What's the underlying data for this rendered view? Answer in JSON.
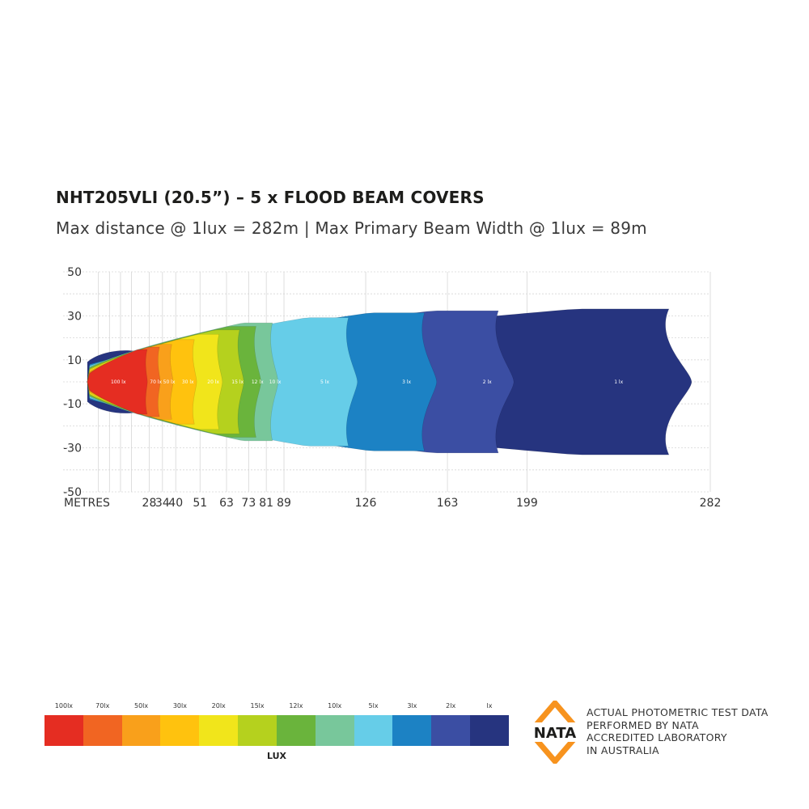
{
  "title": "NHT205VLI (20.5”) – 5 x FLOOD BEAM COVERS",
  "subtitle": "Max distance @ 1lux = 282m  |  Max Primary  Beam Width @ 1lux = 89m",
  "chart_data": {
    "type": "heatmap",
    "xlabel": "METRES",
    "ylabel": "",
    "xlim": [
      0,
      282
    ],
    "ylim": [
      -50,
      50
    ],
    "x_ticks": [
      "28",
      "34",
      "40",
      "51",
      "63",
      "73",
      "81",
      "89",
      "126",
      "163",
      "199",
      "282"
    ],
    "y_ticks": [
      "50",
      "30",
      "10",
      "-10",
      "-30",
      "-50"
    ],
    "grid": true,
    "isolux_zones": [
      {
        "lux": 1,
        "label": "1 lx",
        "max_distance_m": 282,
        "color": "#26347f"
      },
      {
        "lux": 2,
        "label": "2 lx",
        "max_distance_m": 199,
        "color": "#3b4ea3"
      },
      {
        "lux": 3,
        "label": "3 lx",
        "max_distance_m": 163,
        "color": "#1c82c4"
      },
      {
        "lux": 5,
        "label": "5 lx",
        "max_distance_m": 126,
        "color": "#66cde8"
      },
      {
        "lux": 10,
        "label": "10 lx",
        "max_distance_m": 89,
        "color": "#78c79b"
      },
      {
        "lux": 12,
        "label": "12 lx",
        "max_distance_m": 81,
        "color": "#6ab43c"
      },
      {
        "lux": 15,
        "label": "15 lx",
        "max_distance_m": 73,
        "color": "#b5d11e"
      },
      {
        "lux": 20,
        "label": "20 lx",
        "max_distance_m": 63,
        "color": "#f1e51b"
      },
      {
        "lux": 30,
        "label": "30 lx",
        "max_distance_m": 51,
        "color": "#ffc20e"
      },
      {
        "lux": 50,
        "label": "50 lx",
        "max_distance_m": 40,
        "color": "#f9a01b"
      },
      {
        "lux": 70,
        "label": "70 lx",
        "max_distance_m": 34,
        "color": "#f16522"
      },
      {
        "lux": 100,
        "label": "100 lx",
        "max_distance_m": 28,
        "color": "#e52d22"
      }
    ]
  },
  "legend": {
    "labels": [
      "100lx",
      "70lx",
      "50lx",
      "30lx",
      "20lx",
      "15lx",
      "12lx",
      "10lx",
      "5lx",
      "3lx",
      "2lx",
      "lx"
    ],
    "colors": [
      "#e52d22",
      "#f16522",
      "#f9a01b",
      "#ffc20e",
      "#f1e51b",
      "#b5d11e",
      "#6ab43c",
      "#78c79b",
      "#66cde8",
      "#1c82c4",
      "#3b4ea3",
      "#26347f"
    ],
    "unit": "LUX"
  },
  "nata": {
    "logo_text": "NATA",
    "lines": [
      "ACTUAL PHOTOMETRIC TEST DATA",
      "PERFORMED BY NATA",
      "ACCREDITED LABORATORY",
      "IN AUSTRALIA"
    ],
    "accent_color": "#f7931e"
  }
}
